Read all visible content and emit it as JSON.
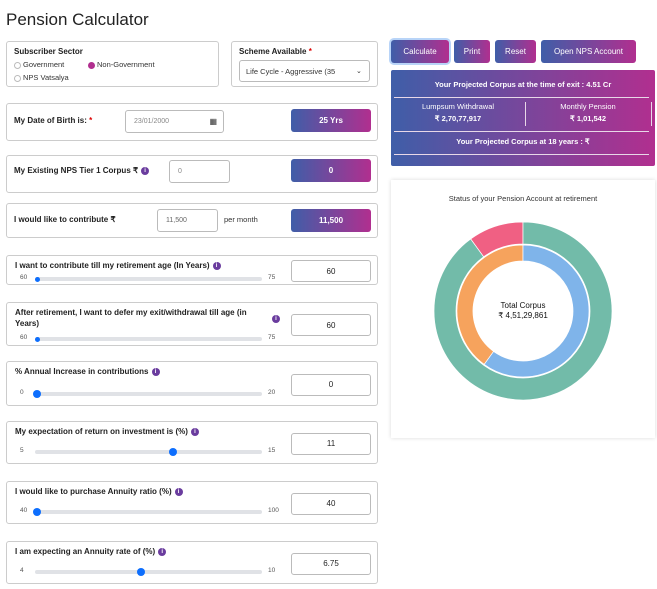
{
  "title": "Pension Calculator",
  "sector": {
    "label": "Subscriber Sector",
    "options": [
      {
        "label": "Government",
        "selected": false
      },
      {
        "label": "Non-Government",
        "selected": true
      },
      {
        "label": "NPS Vatsalya",
        "selected": false
      }
    ]
  },
  "scheme": {
    "label": "Scheme Available",
    "required": "*",
    "value": "Life Cycle - Aggressive (35"
  },
  "dob": {
    "label": "My Date of Birth is:",
    "required": "*",
    "value": "23/01/2000",
    "result": "25 Yrs"
  },
  "corpus": {
    "label": "My Existing NPS Tier 1 Corpus ₹",
    "placeholder": "0",
    "result": "0"
  },
  "contribute": {
    "label": "I would like to contribute ₹",
    "value": "11,500",
    "suffix": "per month",
    "result": "11,500"
  },
  "sliders": [
    {
      "label": "I want to contribute till my retirement age (In Years)",
      "min": "60",
      "max": "75",
      "value": "60",
      "level": 0,
      "small": true
    },
    {
      "label": "After retirement, I want to defer my exit/withdrawal till age (in Years)",
      "min": "60",
      "max": "75",
      "value": "60",
      "level": 0,
      "small": true
    },
    {
      "label": "% Annual Increase in contributions",
      "min": "0",
      "max": "20",
      "value": "0",
      "level": 0
    },
    {
      "label": "My expectation of return on investment is (%)",
      "min": "5",
      "max": "15",
      "value": "11",
      "level": 0.6
    },
    {
      "label": "I would like to purchase Annuity ratio (%)",
      "min": "40",
      "max": "100",
      "value": "40",
      "level": 0
    },
    {
      "label": "I am expecting an Annuity rate of (%)",
      "min": "4",
      "max": "10",
      "value": "6.75",
      "level": 0.458
    }
  ],
  "buttons": {
    "calculate": "Calculate",
    "print": "Print",
    "reset": "Reset",
    "open": "Open NPS Account"
  },
  "results": {
    "exit_corpus": "Your Projected Corpus at the time of exit : 4.51 Cr",
    "lumpsum_label": "Lumpsum Withdrawal",
    "lumpsum_value": "₹ 2,70,77,917",
    "pension_label": "Monthly Pension",
    "pension_value": "₹ 1,01,542",
    "corpus18": "Your Projected Corpus at 18 years : ₹"
  },
  "chart_data": {
    "type": "pie",
    "title": "Status of your Pension Account at retirement",
    "center_label": "Total Corpus",
    "center_value": "₹ 4,51,29,861",
    "outer": {
      "values": [
        10,
        90
      ],
      "colors": [
        "#f06083",
        "#72bba9"
      ]
    },
    "inner": {
      "values": [
        60,
        40
      ],
      "colors": [
        "#7fb4ea",
        "#f6a35d"
      ]
    }
  }
}
